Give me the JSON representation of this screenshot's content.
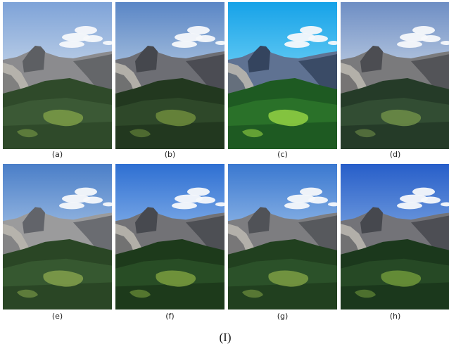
{
  "figure": {
    "panels": [
      {
        "label": "(a)"
      },
      {
        "label": "(b)"
      },
      {
        "label": "(c)"
      },
      {
        "label": "(d)"
      },
      {
        "label": "(e)"
      },
      {
        "label": "(f)"
      },
      {
        "label": "(g)"
      },
      {
        "label": "(h)"
      }
    ],
    "caption": "(I)"
  }
}
